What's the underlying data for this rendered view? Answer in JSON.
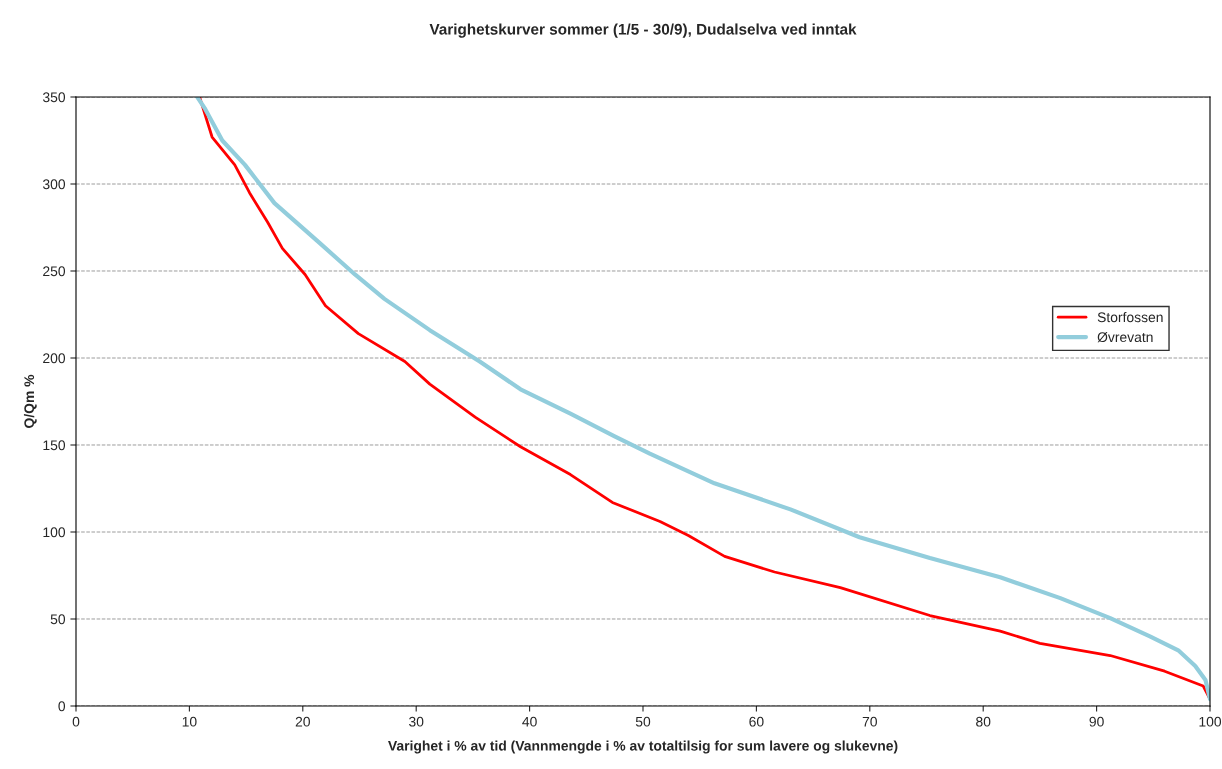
{
  "chart_data": {
    "type": "line",
    "title": "Varighetskurver sommer (1/5 - 30/9), Dudalselva ved inntak",
    "xlabel": "Varighet i % av tid (Vannmengde i % av totaltilsig for sum lavere og slukevne)",
    "ylabel": "Q/Qm %",
    "xlim": [
      0,
      100
    ],
    "xticks": [
      0,
      10,
      20,
      30,
      40,
      50,
      60,
      70,
      80,
      90,
      100
    ],
    "ylim": [
      0,
      350
    ],
    "yticks": [
      0,
      50,
      100,
      150,
      200,
      250,
      300,
      350
    ],
    "grid": "y",
    "legend": "right",
    "marker": "none",
    "line_style": "solid",
    "series": [
      {
        "name": "Storfossen",
        "color": "#ff0000",
        "x": [
          10.9,
          12.0,
          14.0,
          15.3,
          16.9,
          18.2,
          20.2,
          22.0,
          24.9,
          29.0,
          31.2,
          35.2,
          39.2,
          43.6,
          47.3,
          51.5,
          54.0,
          57.2,
          61.6,
          67.4,
          75.3,
          81.5,
          85.0,
          91.2,
          96.0,
          99.4,
          100
        ],
        "values": [
          350,
          327,
          311,
          295,
          278,
          263,
          248,
          230,
          214,
          198,
          185,
          166,
          149,
          133,
          117,
          106,
          98,
          86,
          77,
          68,
          52,
          43,
          36,
          29,
          20,
          11.5,
          4
        ]
      },
      {
        "name": "Øvrevatn",
        "color": "#92cddc",
        "x": [
          10.7,
          11.4,
          12.9,
          14.9,
          17.5,
          21.5,
          24.6,
          27.2,
          31.2,
          35.6,
          39.2,
          43.6,
          47.5,
          50.6,
          56.3,
          63.0,
          69.1,
          75.3,
          81.5,
          86.8,
          91.2,
          94.7,
          97.2,
          98.7,
          99.6,
          100
        ],
        "values": [
          350,
          343,
          325,
          311,
          289,
          266,
          248,
          234,
          216,
          198,
          182,
          168,
          155,
          145,
          128,
          113,
          97,
          85,
          74,
          62,
          50.5,
          40,
          32,
          23,
          15,
          4
        ]
      }
    ]
  }
}
